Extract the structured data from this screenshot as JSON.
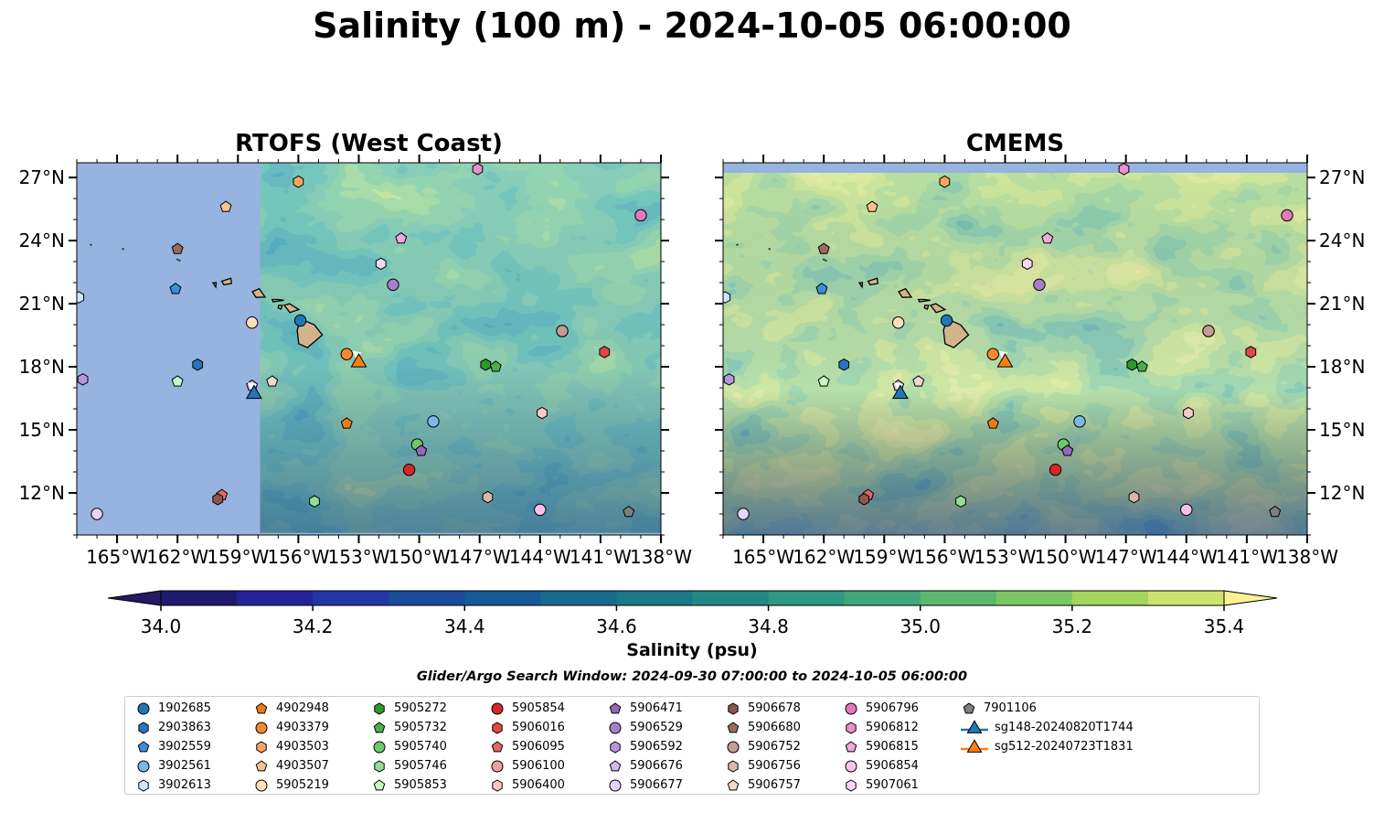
{
  "title": "Salinity (100 m) - 2024-10-05 06:00:00",
  "colorbar": {
    "label": "Salinity (psu)",
    "ticks": [
      "34.0",
      "34.2",
      "34.4",
      "34.6",
      "34.8",
      "35.0",
      "35.2",
      "35.4"
    ],
    "min": 34.0,
    "max": 35.4,
    "step": 0.1,
    "colors": [
      "#1f1a6e",
      "#22239a",
      "#2436a6",
      "#1a4a9a",
      "#145a96",
      "#166a8e",
      "#1b788a",
      "#238885",
      "#2e9880",
      "#41a77a",
      "#5ab870",
      "#7bc765",
      "#a1d55c",
      "#cde36e",
      "#f7ee90"
    ],
    "under_color": "#231a62",
    "over_color": "#fbf195"
  },
  "search_window": "Glider/Argo Search Window: 2024-09-30 07:00:00 to 2024-10-05 06:00:00",
  "chart_data": [
    {
      "type": "map",
      "title": "RTOFS (West Coast)",
      "lon_range": [
        -167,
        -138
      ],
      "lat_range": [
        10,
        27.7
      ],
      "x_tick_labels": [
        "165°W",
        "162°W",
        "159°W",
        "156°W",
        "153°W",
        "150°W",
        "147°W",
        "144°W",
        "141°W",
        "138°W"
      ],
      "y_tick_labels": [
        "12°N",
        "15°N",
        "18°N",
        "21°N",
        "24°N",
        "27°N"
      ],
      "model_domain_lon_min": -157.9,
      "land_fill_color": "#97b3e0"
    },
    {
      "type": "map",
      "title": "CMEMS",
      "lon_range": [
        -167,
        -138
      ],
      "lat_range": [
        10,
        27.7
      ],
      "x_tick_labels": [
        "165°W",
        "162°W",
        "159°W",
        "156°W",
        "153°W",
        "150°W",
        "147°W",
        "144°W",
        "141°W",
        "138°W"
      ],
      "y_tick_labels": [
        "12°N",
        "15°N",
        "18°N",
        "21°N",
        "24°N",
        "27°N"
      ],
      "model_domain_lat_max": 27.2,
      "land_fill_color": "#97b3e0"
    }
  ],
  "platforms": [
    {
      "id": "1902685",
      "marker": "circle",
      "color": "#1f77b4",
      "lon": -155.9,
      "lat": 20.2
    },
    {
      "id": "2903863",
      "marker": "hexagon",
      "color": "#2a74c0",
      "lon": -161.0,
      "lat": 18.1
    },
    {
      "id": "3902559",
      "marker": "pentagon",
      "color": "#3c8fd6",
      "lon": -162.1,
      "lat": 21.7
    },
    {
      "id": "3902561",
      "marker": "circle",
      "color": "#7ab8e8",
      "lon": -149.3,
      "lat": 15.4
    },
    {
      "id": "3902613",
      "marker": "hexagon",
      "color": "#cfe6fb",
      "lon": -166.9,
      "lat": 21.3
    },
    {
      "id": "4902948",
      "marker": "pentagon",
      "color": "#f07b13",
      "lon": -153.6,
      "lat": 15.3
    },
    {
      "id": "4903379",
      "marker": "circle",
      "color": "#f38a2e",
      "lon": -153.6,
      "lat": 18.6
    },
    {
      "id": "4903503",
      "marker": "hexagon",
      "color": "#f5a762",
      "lon": -156.0,
      "lat": 26.8
    },
    {
      "id": "4903507",
      "marker": "pentagon",
      "color": "#f8c38e",
      "lon": -159.6,
      "lat": 25.6
    },
    {
      "id": "5905219",
      "marker": "circle",
      "color": "#fde0c0",
      "lon": -158.3,
      "lat": 20.1
    },
    {
      "id": "5905272",
      "marker": "hexagon",
      "color": "#2b9a2b",
      "lon": -146.7,
      "lat": 18.1
    },
    {
      "id": "5905732",
      "marker": "pentagon",
      "color": "#4ab04a",
      "lon": -146.2,
      "lat": 18.0
    },
    {
      "id": "5905740",
      "marker": "circle",
      "color": "#6cc86c",
      "lon": -150.1,
      "lat": 14.3
    },
    {
      "id": "5905746",
      "marker": "hexagon",
      "color": "#93de93",
      "lon": -155.2,
      "lat": 11.6
    },
    {
      "id": "5905853",
      "marker": "pentagon",
      "color": "#c9f6c1",
      "lon": -162.0,
      "lat": 17.3
    },
    {
      "id": "5905854",
      "marker": "circle",
      "color": "#d62728",
      "lon": -150.5,
      "lat": 13.1
    },
    {
      "id": "5906016",
      "marker": "hexagon",
      "color": "#e04848",
      "lon": -140.8,
      "lat": 18.7
    },
    {
      "id": "5906095",
      "marker": "pentagon",
      "color": "#e56868",
      "lon": -159.8,
      "lat": 11.9
    },
    {
      "id": "5906100",
      "marker": "circle",
      "color": "#f0a0a0",
      "lon": -142.9,
      "lat": 19.7
    },
    {
      "id": "5906400",
      "marker": "hexagon",
      "color": "#f8c9c9",
      "lon": -143.9,
      "lat": 15.8
    },
    {
      "id": "5906471",
      "marker": "pentagon",
      "color": "#9467bd",
      "lon": -149.9,
      "lat": 14.0
    },
    {
      "id": "5906529",
      "marker": "circle",
      "color": "#a57fcc",
      "lon": -151.3,
      "lat": 21.9
    },
    {
      "id": "5906592",
      "marker": "hexagon",
      "color": "#b797dc",
      "lon": -166.7,
      "lat": 17.4
    },
    {
      "id": "5906676",
      "marker": "pentagon",
      "color": "#d1b8ee",
      "lon": -158.3,
      "lat": 17.1
    },
    {
      "id": "5906677",
      "marker": "circle",
      "color": "#e6d6f8",
      "lon": -166.0,
      "lat": 11.0
    },
    {
      "id": "5906678",
      "marker": "hexagon",
      "color": "#8c564b",
      "lon": -160.0,
      "lat": 11.7
    },
    {
      "id": "5906680",
      "marker": "pentagon",
      "color": "#9c6b60",
      "lon": -162.0,
      "lat": 23.6
    },
    {
      "id": "5906752",
      "marker": "circle",
      "color": "#c49c94",
      "lon": -142.9,
      "lat": 19.7
    },
    {
      "id": "5906756",
      "marker": "hexagon",
      "color": "#dcb5ad",
      "lon": -146.6,
      "lat": 11.8
    },
    {
      "id": "5906757",
      "marker": "pentagon",
      "color": "#f5d8cf",
      "lon": -157.3,
      "lat": 17.3
    },
    {
      "id": "5906796",
      "marker": "circle",
      "color": "#e377c2",
      "lon": -139.0,
      "lat": 25.2
    },
    {
      "id": "5906812",
      "marker": "hexagon",
      "color": "#ea8fd0",
      "lon": -147.1,
      "lat": 27.4
    },
    {
      "id": "5906815",
      "marker": "pentagon",
      "color": "#f1a8dd",
      "lon": -150.9,
      "lat": 24.1
    },
    {
      "id": "5906854",
      "marker": "circle",
      "color": "#f8c1ea",
      "lon": -144.0,
      "lat": 11.2
    },
    {
      "id": "5907061",
      "marker": "hexagon",
      "color": "#fbd6ee",
      "lon": -151.9,
      "lat": 22.9
    },
    {
      "id": "7901106",
      "marker": "pentagon",
      "color": "#7f7f7f",
      "lon": -139.6,
      "lat": 11.1
    }
  ],
  "gliders": [
    {
      "id": "sg148-20240820T1744",
      "marker": "triangle",
      "color": "#1f77b4",
      "lon": -158.2,
      "lat": 16.7
    },
    {
      "id": "sg512-20240723T1831",
      "marker": "triangle",
      "color": "#ff7f0e",
      "lon": -153.0,
      "lat": 18.2
    }
  ]
}
